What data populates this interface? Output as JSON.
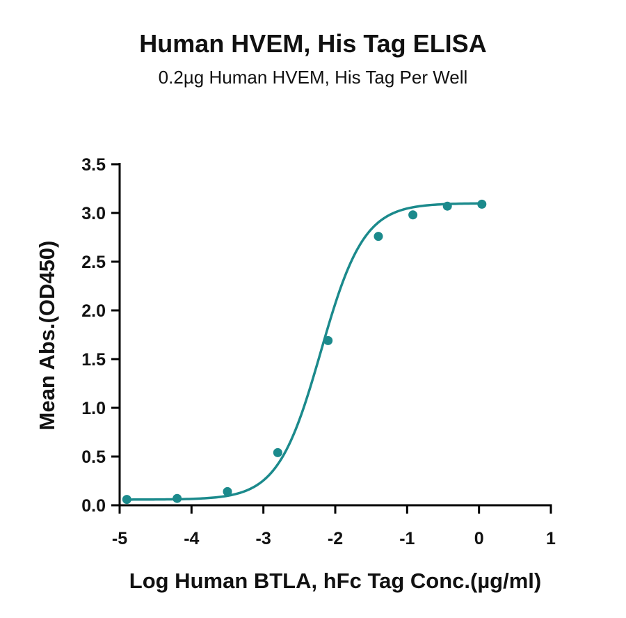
{
  "chart_data": {
    "type": "scatter",
    "title": "Human HVEM, His Tag ELISA",
    "subtitle": "0.2µg Human HVEM, His Tag Per Well",
    "xlabel": "Log Human BTLA, hFc Tag Conc.(µg/ml)",
    "ylabel": "Mean Abs.(OD450)",
    "xlim": [
      -5,
      1
    ],
    "ylim": [
      0,
      3.5
    ],
    "xticks": [
      "-5",
      "-4",
      "-3",
      "-2",
      "-1",
      "0",
      "1"
    ],
    "yticks": [
      "0.0",
      "0.5",
      "1.0",
      "1.5",
      "2.0",
      "2.5",
      "3.0",
      "3.5"
    ],
    "grid": false,
    "legend": "none",
    "series": [
      {
        "x": [
          -4.9,
          -4.2,
          -3.5,
          -2.8,
          -2.1,
          -1.4,
          -0.92,
          -0.44,
          0.04
        ],
        "y": [
          0.06,
          0.07,
          0.14,
          0.54,
          1.69,
          2.76,
          2.98,
          3.07,
          3.09
        ],
        "fit": "4PL",
        "color": "#1b8a8c"
      }
    ]
  }
}
